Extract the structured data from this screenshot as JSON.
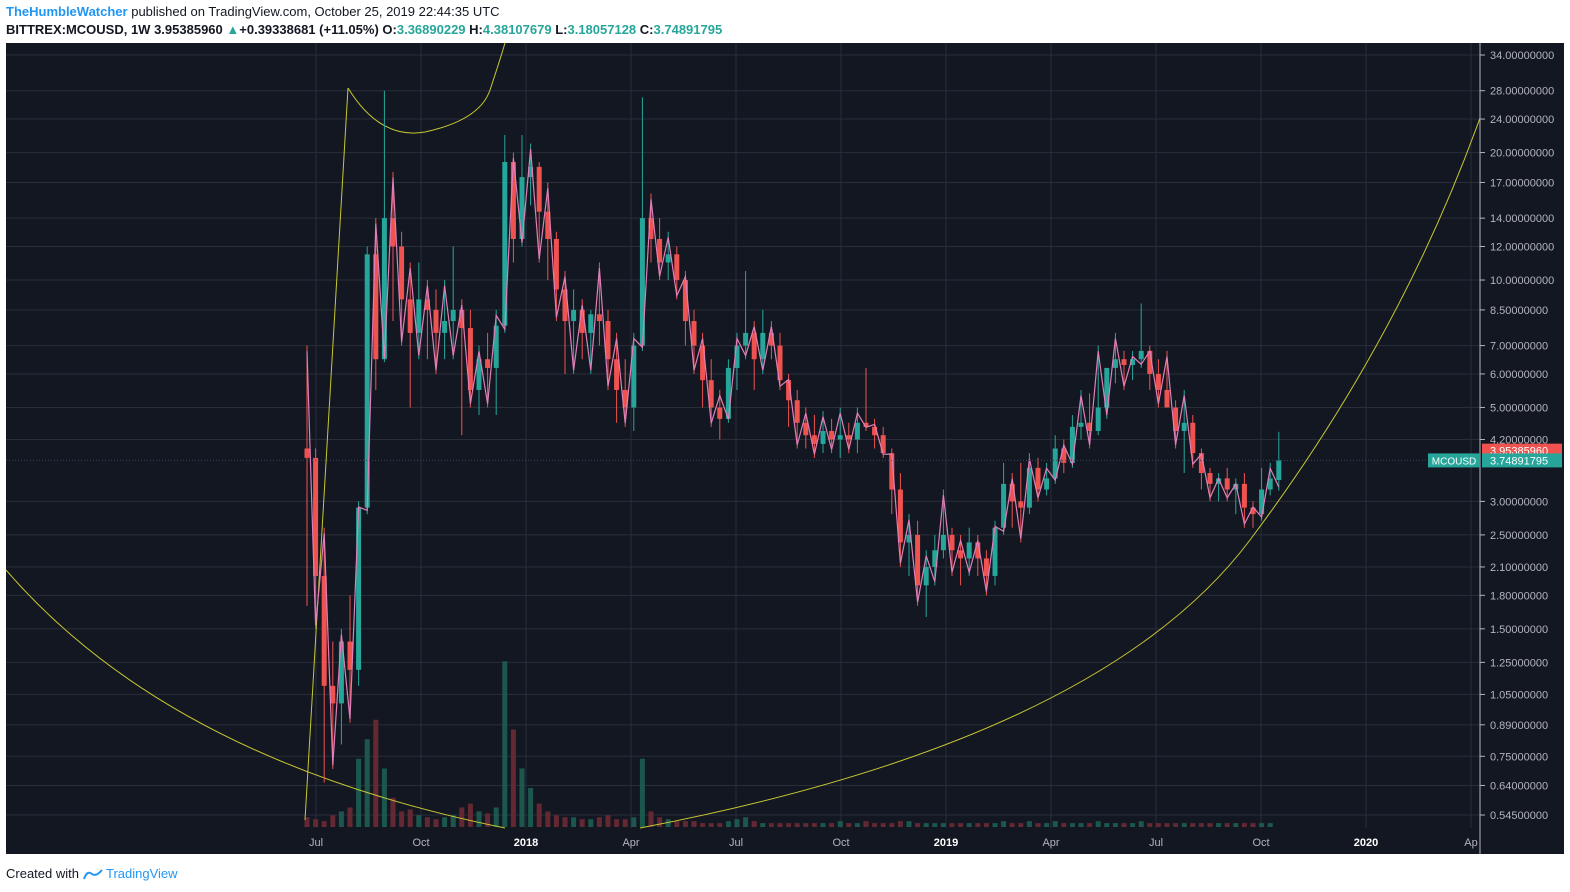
{
  "header": {
    "author": "TheHumbleWatcher",
    "published": "published on TradingView.com, October 25, 2019 22:44:35 UTC",
    "symbol": "BITTREX:MCOUSD, 1W",
    "price": "3.95385960",
    "change": "+0.39338681 (+11.05%)",
    "change_icon": "triangle-up-icon",
    "o_label": "O:",
    "o_value": "3.36890229",
    "h_label": "H:",
    "h_value": "4.38107679",
    "l_label": "L:",
    "l_value": "3.18057128",
    "c_label": "C:",
    "c_value": "3.74891795"
  },
  "footer": {
    "created_with": "Created with",
    "brand": "TradingView",
    "logo_icon": "tradingview-logo-icon"
  },
  "colors": {
    "background": "#131722",
    "up": "#26a69a",
    "down": "#ef5350",
    "line": "#e07fb8",
    "arc": "#c8c832",
    "grid": "#2a2e39"
  },
  "chart_data": {
    "type": "candlestick",
    "symbol": "BITTREX:MCOUSD",
    "interval": "1W",
    "y_scale": "log",
    "y_ticks": [
      "34.00000000",
      "28.00000000",
      "24.00000000",
      "20.00000000",
      "17.00000000",
      "14.00000000",
      "12.00000000",
      "10.00000000",
      "8.50000000",
      "7.00000000",
      "6.00000000",
      "5.00000000",
      "4.20000000",
      "3.00000000",
      "2.50000000",
      "2.10000000",
      "1.80000000",
      "1.50000000",
      "1.25000000",
      "1.05000000",
      "0.89000000",
      "0.75000000",
      "0.64000000",
      "0.54500000"
    ],
    "x_ticks": [
      "Jul",
      "Oct",
      "2018",
      "Apr",
      "Jul",
      "Oct",
      "2019",
      "Apr",
      "Jul",
      "Oct",
      "2020",
      "Ap"
    ],
    "x_ticks_bold": [
      "2018",
      "2019",
      "2020"
    ],
    "price_tags": [
      {
        "label": "",
        "value": "3.95385960",
        "color": "#ef5350"
      },
      {
        "label": "MCOUSD",
        "value": "3.74891795",
        "color": "#26a69a"
      }
    ],
    "candles": [
      [
        4.0,
        7.0,
        1.7,
        3.8
      ],
      [
        3.8,
        4.0,
        1.5,
        2.0
      ],
      [
        2.0,
        2.6,
        0.65,
        1.1
      ],
      [
        1.1,
        1.4,
        0.7,
        1.0
      ],
      [
        1.0,
        1.5,
        0.8,
        1.4
      ],
      [
        1.4,
        1.8,
        0.9,
        1.2
      ],
      [
        1.2,
        3.0,
        1.1,
        2.9
      ],
      [
        2.9,
        12.0,
        2.8,
        11.5
      ],
      [
        11.5,
        14.0,
        5.5,
        6.5
      ],
      [
        6.5,
        28.0,
        6.4,
        14.0
      ],
      [
        14.0,
        18.0,
        8.0,
        12.0
      ],
      [
        12.0,
        13.0,
        7.0,
        9.0
      ],
      [
        9.0,
        11.0,
        5.0,
        7.5
      ],
      [
        7.5,
        11.0,
        6.5,
        9.0
      ],
      [
        9.0,
        10.0,
        6.5,
        8.5
      ],
      [
        8.5,
        9.5,
        6.0,
        7.5
      ],
      [
        7.5,
        10.0,
        6.5,
        8.0
      ],
      [
        8.0,
        12.0,
        6.5,
        8.5
      ],
      [
        8.5,
        9.0,
        4.3,
        7.7
      ],
      [
        7.7,
        8.5,
        5.0,
        5.5
      ],
      [
        5.5,
        7.0,
        4.8,
        6.5
      ],
      [
        6.5,
        7.5,
        5.0,
        6.2
      ],
      [
        6.2,
        8.5,
        4.8,
        7.8
      ],
      [
        7.8,
        22.0,
        7.5,
        19.0
      ],
      [
        19.0,
        20.0,
        11.0,
        12.5
      ],
      [
        12.5,
        22.0,
        12.0,
        17.5
      ],
      [
        17.5,
        21.0,
        15.0,
        18.5
      ],
      [
        18.5,
        19.0,
        11.0,
        14.5
      ],
      [
        14.5,
        17.0,
        10.0,
        12.5
      ],
      [
        12.5,
        13.0,
        8.0,
        9.5
      ],
      [
        9.5,
        10.5,
        6.0,
        8.0
      ],
      [
        8.0,
        9.5,
        6.0,
        8.5
      ],
      [
        8.5,
        9.0,
        6.5,
        7.5
      ],
      [
        7.5,
        8.5,
        6.0,
        8.3
      ],
      [
        8.3,
        11.0,
        7.0,
        8.0
      ],
      [
        8.0,
        8.5,
        5.5,
        6.5
      ],
      [
        6.5,
        7.5,
        4.6,
        5.5
      ],
      [
        5.5,
        6.5,
        4.5,
        5.0
      ],
      [
        5.0,
        7.5,
        4.4,
        7.0
      ],
      [
        7.0,
        27.0,
        6.8,
        14.0
      ],
      [
        14.0,
        16.0,
        11.0,
        12.5
      ],
      [
        12.5,
        14.0,
        10.0,
        11.0
      ],
      [
        11.0,
        13.0,
        10.0,
        11.5
      ],
      [
        11.5,
        12.0,
        9.0,
        10.0
      ],
      [
        10.0,
        10.5,
        7.0,
        8.0
      ],
      [
        8.0,
        8.5,
        6.0,
        7.0
      ],
      [
        7.0,
        7.5,
        5.0,
        5.8
      ],
      [
        5.8,
        6.5,
        4.5,
        5.0
      ],
      [
        5.0,
        5.5,
        4.2,
        4.7
      ],
      [
        4.7,
        6.5,
        4.6,
        6.2
      ],
      [
        6.2,
        7.5,
        5.5,
        7.0
      ],
      [
        7.0,
        10.5,
        6.5,
        7.5
      ],
      [
        7.5,
        8.0,
        5.5,
        6.5
      ],
      [
        6.5,
        8.5,
        6.0,
        7.5
      ],
      [
        7.5,
        8.0,
        6.5,
        7.0
      ],
      [
        7.0,
        7.5,
        5.5,
        5.8
      ],
      [
        5.8,
        6.0,
        4.5,
        5.2
      ],
      [
        5.2,
        5.5,
        4.0,
        4.6
      ],
      [
        4.6,
        5.0,
        4.0,
        4.3
      ],
      [
        4.3,
        4.8,
        3.8,
        4.1
      ],
      [
        4.1,
        4.9,
        3.9,
        4.4
      ],
      [
        4.4,
        4.7,
        3.9,
        4.2
      ],
      [
        4.2,
        5.0,
        3.8,
        4.3
      ],
      [
        4.3,
        4.6,
        3.9,
        4.2
      ],
      [
        4.2,
        5.0,
        3.9,
        4.6
      ],
      [
        4.6,
        6.2,
        4.4,
        4.5
      ],
      [
        4.5,
        4.7,
        4.0,
        4.3
      ],
      [
        4.3,
        4.5,
        3.8,
        3.9
      ],
      [
        3.9,
        4.0,
        2.8,
        3.2
      ],
      [
        3.2,
        3.5,
        2.1,
        2.4
      ],
      [
        2.4,
        2.8,
        2.0,
        2.5
      ],
      [
        2.5,
        2.7,
        1.7,
        1.9
      ],
      [
        1.9,
        2.3,
        1.6,
        2.1
      ],
      [
        2.1,
        2.5,
        1.9,
        2.3
      ],
      [
        2.3,
        3.2,
        2.2,
        2.5
      ],
      [
        2.5,
        2.6,
        2.0,
        2.3
      ],
      [
        2.3,
        2.5,
        1.9,
        2.2
      ],
      [
        2.2,
        2.6,
        2.0,
        2.4
      ],
      [
        2.4,
        2.5,
        2.0,
        2.2
      ],
      [
        2.2,
        2.3,
        1.8,
        2.0
      ],
      [
        2.0,
        2.7,
        1.9,
        2.6
      ],
      [
        2.6,
        3.7,
        2.5,
        3.3
      ],
      [
        3.3,
        3.5,
        2.6,
        3.0
      ],
      [
        3.0,
        3.7,
        2.4,
        2.9
      ],
      [
        2.9,
        3.9,
        2.8,
        3.6
      ],
      [
        3.6,
        3.8,
        3.0,
        3.2
      ],
      [
        3.2,
        3.7,
        3.1,
        3.4
      ],
      [
        3.4,
        4.3,
        3.3,
        4.0
      ],
      [
        4.0,
        4.2,
        3.5,
        3.7
      ],
      [
        3.7,
        4.8,
        3.6,
        4.5
      ],
      [
        4.5,
        5.5,
        4.2,
        4.6
      ],
      [
        4.6,
        5.4,
        4.0,
        4.4
      ],
      [
        4.4,
        7.0,
        4.3,
        5.0
      ],
      [
        5.0,
        6.0,
        4.7,
        6.2
      ],
      [
        6.2,
        7.5,
        5.7,
        6.5
      ],
      [
        6.5,
        6.8,
        5.5,
        6.3
      ],
      [
        6.3,
        6.8,
        5.8,
        6.5
      ],
      [
        6.5,
        8.8,
        6.2,
        6.8
      ],
      [
        6.8,
        7.0,
        5.5,
        6.0
      ],
      [
        6.0,
        6.5,
        5.0,
        5.5
      ],
      [
        5.5,
        6.8,
        5.2,
        5.0
      ],
      [
        5.0,
        5.2,
        4.0,
        4.4
      ],
      [
        4.4,
        5.5,
        3.5,
        4.6
      ],
      [
        4.6,
        4.8,
        3.6,
        3.9
      ],
      [
        3.9,
        4.0,
        3.2,
        3.5
      ],
      [
        3.5,
        3.6,
        3.0,
        3.3
      ],
      [
        3.3,
        3.5,
        3.0,
        3.4
      ],
      [
        3.4,
        3.6,
        3.0,
        3.2
      ],
      [
        3.2,
        3.4,
        2.8,
        3.3
      ],
      [
        3.3,
        3.5,
        2.6,
        2.9
      ],
      [
        2.9,
        3.0,
        2.6,
        2.8
      ],
      [
        2.8,
        3.6,
        2.7,
        3.2
      ],
      [
        3.2,
        3.7,
        3.1,
        3.4
      ],
      [
        3.37,
        4.38,
        3.18,
        3.75
      ]
    ],
    "arcs": [
      "arc-lower-left",
      "arc-top-small",
      "arc-right-large"
    ],
    "line_overlay": "close-price-line",
    "volume": [
      0.05,
      0.04,
      0.03,
      0.06,
      0.08,
      0.1,
      0.35,
      0.45,
      0.55,
      0.3,
      0.15,
      0.08,
      0.09,
      0.06,
      0.05,
      0.04,
      0.05,
      0.06,
      0.1,
      0.12,
      0.08,
      0.07,
      0.1,
      0.85,
      0.5,
      0.3,
      0.2,
      0.12,
      0.08,
      0.06,
      0.05,
      0.05,
      0.04,
      0.04,
      0.05,
      0.06,
      0.04,
      0.04,
      0.05,
      0.35,
      0.08,
      0.05,
      0.04,
      0.03,
      0.03,
      0.03,
      0.02,
      0.02,
      0.02,
      0.03,
      0.04,
      0.05,
      0.03,
      0.02,
      0.02,
      0.02,
      0.02,
      0.02,
      0.02,
      0.02,
      0.02,
      0.02,
      0.03,
      0.02,
      0.02,
      0.03,
      0.02,
      0.02,
      0.02,
      0.03,
      0.03,
      0.02,
      0.02,
      0.02,
      0.02,
      0.02,
      0.02,
      0.02,
      0.02,
      0.02,
      0.02,
      0.03,
      0.02,
      0.02,
      0.03,
      0.02,
      0.02,
      0.03,
      0.02,
      0.02,
      0.02,
      0.02,
      0.03,
      0.02,
      0.02,
      0.02,
      0.02,
      0.03,
      0.02,
      0.02,
      0.02,
      0.02,
      0.02,
      0.02,
      0.02,
      0.02,
      0.02,
      0.02,
      0.02,
      0.02,
      0.02,
      0.02,
      0.02
    ]
  }
}
